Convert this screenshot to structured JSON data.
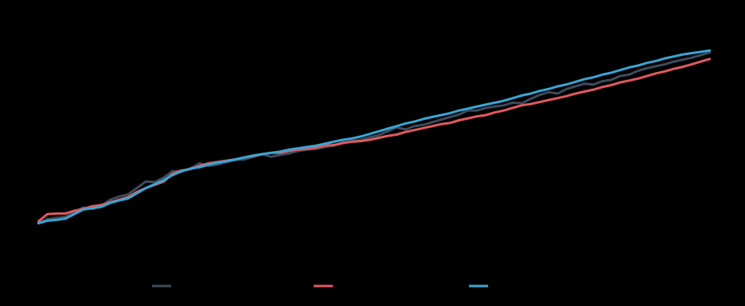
{
  "chart_data": {
    "type": "line",
    "x": [
      0,
      1,
      2,
      3,
      4,
      5,
      6,
      7,
      8,
      9,
      10,
      11,
      12,
      13,
      14,
      15,
      16,
      17,
      18,
      19,
      20,
      21,
      22,
      23,
      24,
      25,
      26,
      27,
      28,
      29,
      30,
      31,
      32,
      33,
      34,
      35,
      36,
      37,
      38,
      39,
      40,
      41,
      42,
      43,
      44,
      45,
      46,
      47,
      48,
      49,
      50,
      51,
      52,
      53,
      54,
      55,
      56,
      57,
      58,
      59,
      60,
      61,
      62,
      63,
      64,
      65,
      66,
      67,
      68,
      69,
      70,
      71,
      72,
      73,
      74,
      75
    ],
    "series": [
      {
        "name": "",
        "color": "#3d4b5c",
        "values": [
          0.2,
          0.8,
          1.0,
          1.2,
          1.8,
          2.6,
          2.4,
          2.8,
          3.8,
          4.3,
          4.6,
          5.6,
          6.6,
          6.5,
          7.2,
          8.2,
          8.1,
          8.6,
          9.4,
          9.0,
          9.2,
          9.6,
          9.9,
          10.0,
          10.4,
          10.8,
          10.4,
          10.7,
          10.9,
          11.3,
          11.5,
          11.6,
          11.9,
          12.1,
          12.6,
          12.8,
          13.0,
          13.4,
          13.7,
          14.3,
          14.9,
          14.6,
          15.1,
          15.3,
          15.7,
          16.1,
          16.5,
          16.9,
          17.5,
          17.5,
          17.9,
          18.1,
          18.3,
          18.7,
          18.6,
          19.3,
          19.9,
          20.3,
          20.1,
          20.8,
          21.2,
          21.6,
          21.5,
          22.0,
          22.2,
          22.8,
          23.0,
          23.6,
          24.0,
          24.3,
          24.6,
          25.0,
          25.3,
          25.6,
          26.0,
          26.4
        ]
      },
      {
        "name": "",
        "color": "#e05a5f",
        "values": [
          0.5,
          1.6,
          1.7,
          1.7,
          2.1,
          2.4,
          2.8,
          3.0,
          3.4,
          3.8,
          4.2,
          5.0,
          5.6,
          6.1,
          6.6,
          7.8,
          8.3,
          8.5,
          9.0,
          9.4,
          9.6,
          9.8,
          10.0,
          10.3,
          10.5,
          10.8,
          11.0,
          11.0,
          11.3,
          11.5,
          11.6,
          11.8,
          12.1,
          12.2,
          12.5,
          12.7,
          12.8,
          13.0,
          13.3,
          13.6,
          13.8,
          14.2,
          14.5,
          14.8,
          15.1,
          15.4,
          15.6,
          16.0,
          16.3,
          16.6,
          16.8,
          17.2,
          17.5,
          17.9,
          18.3,
          18.5,
          18.8,
          19.1,
          19.4,
          19.7,
          20.1,
          20.4,
          20.7,
          21.1,
          21.4,
          21.8,
          22.1,
          22.4,
          22.8,
          23.2,
          23.5,
          23.9,
          24.2,
          24.6,
          25.0,
          25.4
        ]
      },
      {
        "name": "",
        "color": "#3aa4d4",
        "values": [
          0.2,
          0.6,
          0.7,
          0.9,
          1.6,
          2.3,
          2.5,
          2.7,
          3.3,
          3.7,
          4.0,
          4.8,
          5.6,
          6.2,
          6.8,
          7.6,
          8.2,
          8.6,
          8.8,
          9.2,
          9.5,
          9.7,
          10.0,
          10.3,
          10.6,
          10.8,
          11.0,
          11.2,
          11.5,
          11.7,
          11.9,
          12.1,
          12.4,
          12.7,
          13.0,
          13.2,
          13.5,
          13.9,
          14.3,
          14.7,
          15.1,
          15.5,
          15.8,
          16.2,
          16.5,
          16.8,
          17.1,
          17.5,
          17.8,
          18.1,
          18.4,
          18.7,
          19.0,
          19.4,
          19.8,
          20.1,
          20.5,
          20.8,
          21.2,
          21.5,
          21.9,
          22.3,
          22.6,
          23.0,
          23.3,
          23.7,
          24.1,
          24.4,
          24.8,
          25.1,
          25.5,
          25.8,
          26.1,
          26.3,
          26.5,
          26.7
        ]
      }
    ],
    "title": "",
    "xlabel": "",
    "ylabel": "",
    "xlim": [
      0,
      75
    ],
    "ylim": [
      -6,
      32
    ],
    "grid": false,
    "legend": "bottom"
  }
}
